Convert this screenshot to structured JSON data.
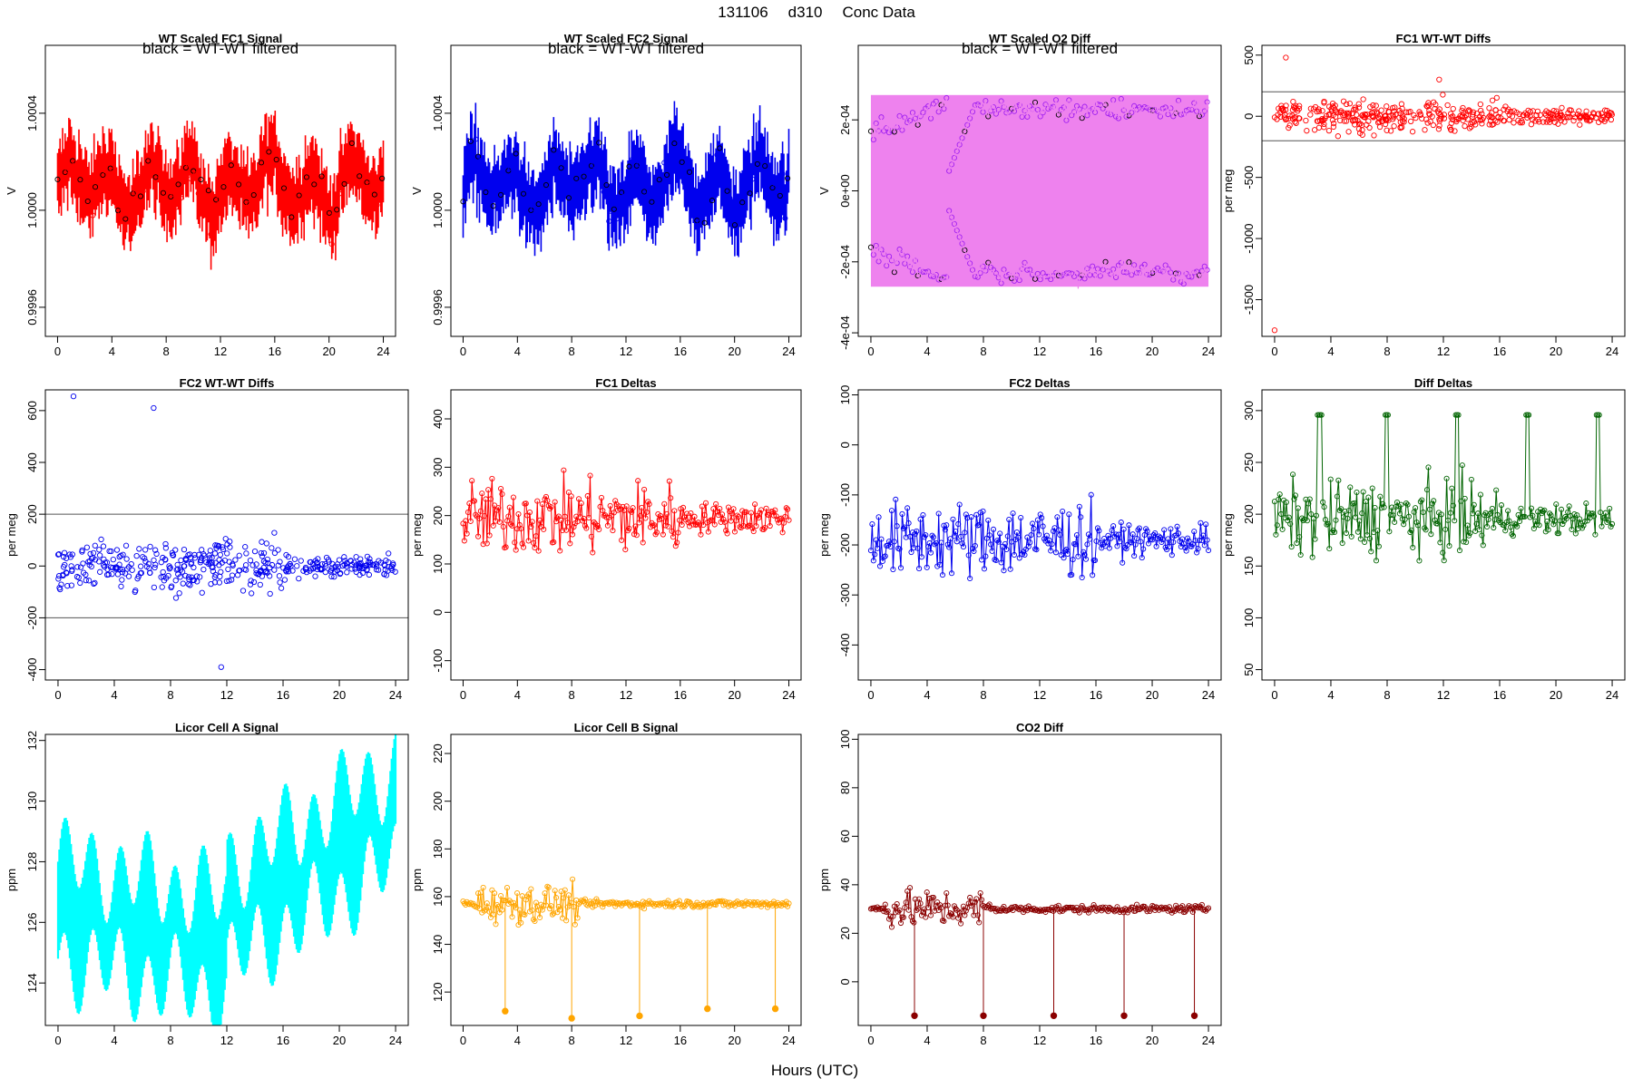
{
  "figure": {
    "date": "131106",
    "station": "d310",
    "kind": "Conc Data",
    "xlabel": "Hours (UTC)"
  },
  "chart_data": [
    {
      "type": "line",
      "title": "WT Scaled FC1 Signal",
      "ylabel": "V",
      "ylim": [
        0.99948,
        1.00068
      ],
      "yticks": [
        0.9996,
        1.0,
        1.0004
      ],
      "ytick_labels": [
        "0.9996",
        "1.0000",
        "1.0004"
      ],
      "xlim": [
        -0.9,
        24.9
      ],
      "xticks": [
        0,
        4,
        8,
        12,
        16,
        20,
        24
      ],
      "color": "#ff0000",
      "annotation": "black = WT-WT filtered",
      "series": [
        {
          "name": "signal",
          "center": 1.0001,
          "amplitude": 0.00014,
          "style": "line-points"
        },
        {
          "name": "WT-WT filtered",
          "color": "#000000",
          "style": "points"
        }
      ]
    },
    {
      "type": "line",
      "title": "WT Scaled FC2 Signal",
      "ylabel": "V",
      "ylim": [
        0.99948,
        1.00068
      ],
      "yticks": [
        0.9996,
        1.0,
        1.0004
      ],
      "ytick_labels": [
        "0.9996",
        "1.0000",
        "1.0004"
      ],
      "xlim": [
        -0.9,
        24.9
      ],
      "xticks": [
        0,
        4,
        8,
        12,
        16,
        20,
        24
      ],
      "color": "#0000ee",
      "annotation": "black = WT-WT filtered",
      "series": [
        {
          "name": "signal",
          "center": 1.0001,
          "amplitude": 0.00014,
          "style": "line-points"
        },
        {
          "name": "WT-WT filtered",
          "color": "#000000",
          "style": "points"
        }
      ]
    },
    {
      "type": "line",
      "title": "WT Scaled O2 Diff",
      "ylabel": "V",
      "ylim": [
        -0.00041,
        0.00041
      ],
      "yticks": [
        -0.0004,
        -0.0002,
        0,
        0.0002
      ],
      "ytick_labels": [
        "-4e-04",
        "-2e-04",
        "0e+00",
        "2e-04"
      ],
      "xlim": [
        -0.9,
        24.9
      ],
      "xticks": [
        0,
        4,
        8,
        12,
        16,
        20,
        24
      ],
      "color": "#ee82ee",
      "annotation": "black = WT-WT filtered",
      "series": [
        {
          "name": "upper branch",
          "values_hint": [
            0.0002,
            0.00025
          ]
        },
        {
          "name": "lower branch",
          "values_hint": [
            -0.0002,
            -0.00025
          ]
        }
      ]
    },
    {
      "type": "scatter",
      "title": "FC1 WT-WT Diffs",
      "ylabel": "per meg",
      "ylim": [
        -1800,
        580
      ],
      "yticks": [
        -1500,
        -1000,
        -500,
        0,
        500
      ],
      "ytick_labels": [
        "-1500",
        "-1000",
        "-500",
        "0",
        "500"
      ],
      "xlim": [
        -0.9,
        24.9
      ],
      "xticks": [
        0,
        4,
        8,
        12,
        16,
        20,
        24
      ],
      "color": "#ff0000",
      "hlines": [
        200,
        -200
      ],
      "outliers": [
        {
          "x": 0,
          "y": -1750
        },
        {
          "x": 0.8,
          "y": 480
        },
        {
          "x": 11.7,
          "y": 300
        }
      ]
    },
    {
      "type": "scatter",
      "title": "FC2 WT-WT Diffs",
      "ylabel": "per meg",
      "ylim": [
        -440,
        680
      ],
      "yticks": [
        -400,
        -200,
        0,
        200,
        400,
        600
      ],
      "ytick_labels": [
        "-400",
        "-200",
        "0",
        "200",
        "400",
        "600"
      ],
      "xlim": [
        -0.9,
        24.9
      ],
      "xticks": [
        0,
        4,
        8,
        12,
        16,
        20,
        24
      ],
      "color": "#0000ee",
      "hlines": [
        200,
        -200
      ],
      "outliers": [
        {
          "x": 1.1,
          "y": 655
        },
        {
          "x": 6.8,
          "y": 610
        },
        {
          "x": 11.6,
          "y": -390
        }
      ]
    },
    {
      "type": "line",
      "title": "FC1 Deltas",
      "ylabel": "per meg",
      "ylim": [
        -140,
        460
      ],
      "yticks": [
        -100,
        0,
        100,
        200,
        300,
        400
      ],
      "ytick_labels": [
        "-100",
        "0",
        "100",
        "200",
        "300",
        "400"
      ],
      "xlim": [
        -0.9,
        24.9
      ],
      "xticks": [
        0,
        4,
        8,
        12,
        16,
        20,
        24
      ],
      "color": "#ff0000",
      "center": 195
    },
    {
      "type": "line",
      "title": "FC2 Deltas",
      "ylabel": "per meg",
      "ylim": [
        -470,
        110
      ],
      "yticks": [
        -400,
        -300,
        -200,
        -100,
        0,
        100
      ],
      "ytick_labels": [
        "-400",
        "-300",
        "-200",
        "-100",
        "0",
        "100"
      ],
      "xlim": [
        -0.9,
        24.9
      ],
      "xticks": [
        0,
        4,
        8,
        12,
        16,
        20,
        24
      ],
      "color": "#0000ee",
      "center": -190
    },
    {
      "type": "line",
      "title": "Diff Deltas",
      "ylabel": "per meg",
      "ylim": [
        40,
        320
      ],
      "yticks": [
        50,
        100,
        150,
        200,
        250,
        300
      ],
      "ytick_labels": [
        "50",
        "100",
        "150",
        "200",
        "250",
        "300"
      ],
      "xlim": [
        -0.9,
        24.9
      ],
      "xticks": [
        0,
        4,
        8,
        12,
        16,
        20,
        24
      ],
      "color": "#006400",
      "center": 195,
      "spikes": [
        3.2,
        8.0,
        13.0,
        18.0,
        23.0
      ]
    },
    {
      "type": "line",
      "title": "Licor Cell A Signal",
      "ylabel": "ppm",
      "ylim": [
        122.6,
        132.2
      ],
      "yticks": [
        124,
        126,
        128,
        130,
        132
      ],
      "ytick_labels": [
        "124",
        "126",
        "128",
        "130",
        "132"
      ],
      "xlim": [
        -0.9,
        24.9
      ],
      "xticks": [
        0,
        4,
        8,
        12,
        16,
        20,
        24
      ],
      "color": "#00ffff"
    },
    {
      "type": "line",
      "title": "Licor Cell B Signal",
      "ylabel": "ppm",
      "ylim": [
        106,
        228
      ],
      "yticks": [
        120,
        140,
        160,
        180,
        200,
        220
      ],
      "ytick_labels": [
        "120",
        "140",
        "160",
        "180",
        "200",
        "220"
      ],
      "xlim": [
        -0.9,
        24.9
      ],
      "xticks": [
        0,
        4,
        8,
        12,
        16,
        20,
        24
      ],
      "color": "#ffa500",
      "center": 157,
      "low_events": [
        {
          "x": 3.1,
          "y": 112
        },
        {
          "x": 8.0,
          "y": 109
        },
        {
          "x": 13.0,
          "y": 110
        },
        {
          "x": 18.0,
          "y": 113
        },
        {
          "x": 23.0,
          "y": 113
        }
      ]
    },
    {
      "type": "line",
      "title": "CO2 Diff",
      "ylabel": "ppm",
      "ylim": [
        -18,
        102
      ],
      "yticks": [
        0,
        20,
        40,
        60,
        80,
        100
      ],
      "ytick_labels": [
        "0",
        "20",
        "40",
        "60",
        "80",
        "100"
      ],
      "xlim": [
        -0.9,
        24.9
      ],
      "xticks": [
        0,
        4,
        8,
        12,
        16,
        20,
        24
      ],
      "color": "#8b0000",
      "center": 30,
      "low_events": [
        {
          "x": 3.1,
          "y": -14
        },
        {
          "x": 8.0,
          "y": -14
        },
        {
          "x": 13.0,
          "y": -14
        },
        {
          "x": 18.0,
          "y": -14
        },
        {
          "x": 23.0,
          "y": -14
        }
      ]
    }
  ]
}
